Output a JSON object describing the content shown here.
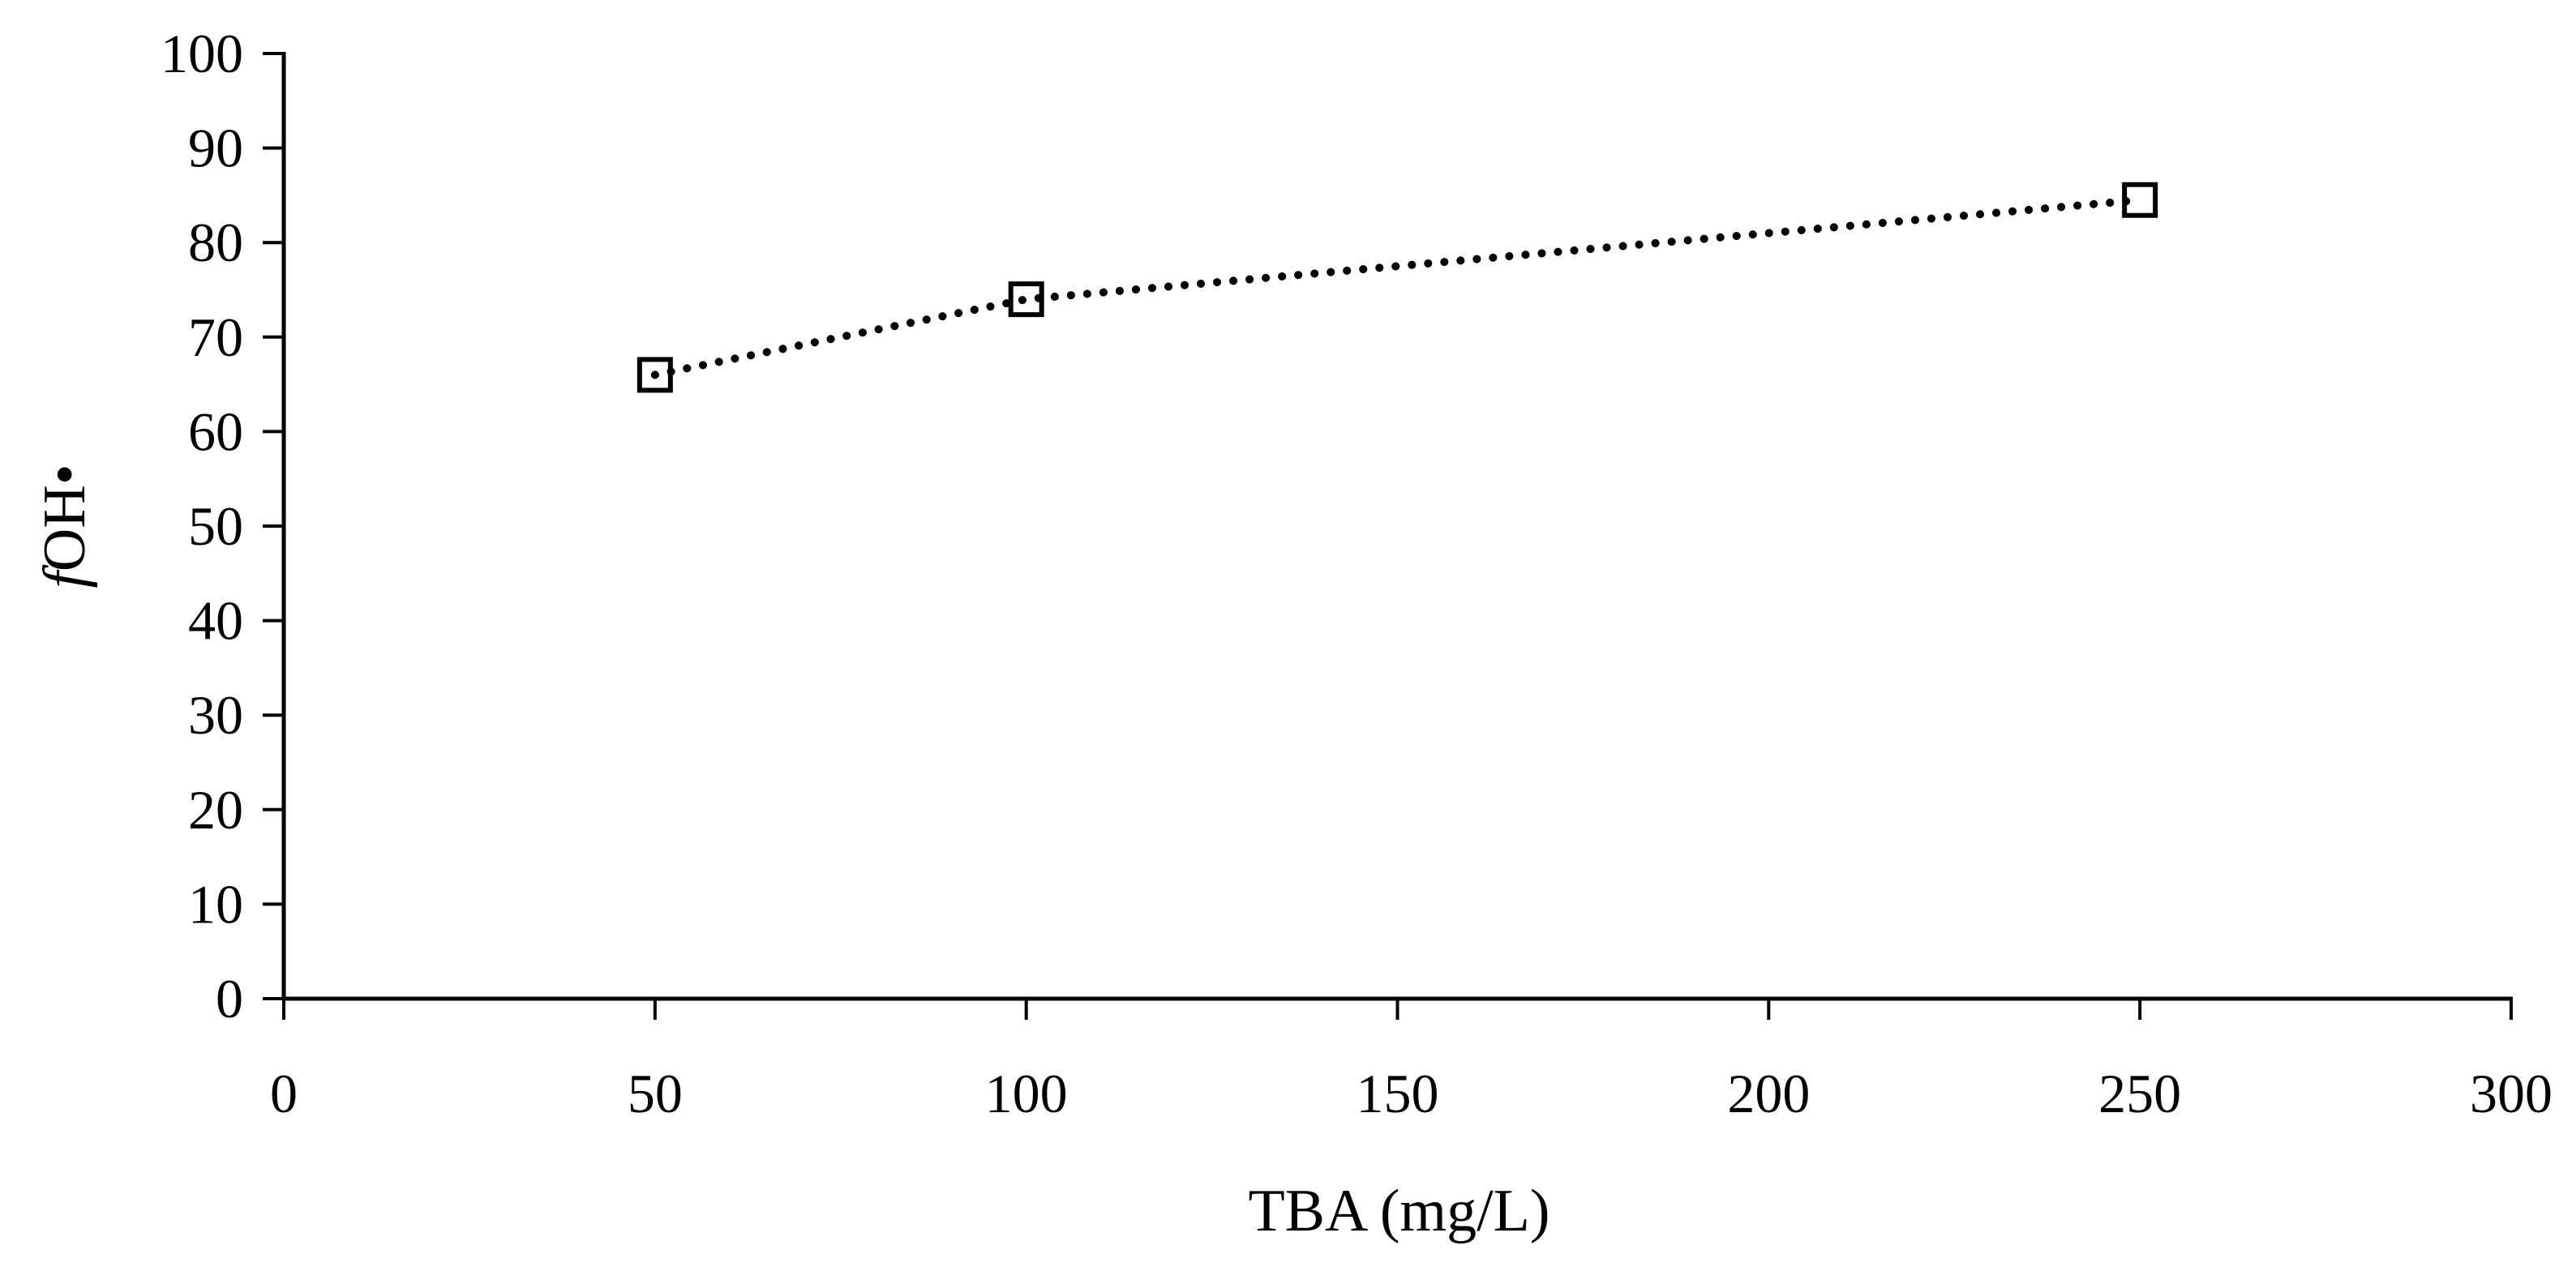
{
  "chart_data": {
    "type": "scatter",
    "title": "",
    "xlabel": "TBA (mg/L)",
    "ylabel_italic": "f",
    "ylabel_rest": "OH•",
    "xlim": [
      0,
      300
    ],
    "ylim": [
      0,
      100
    ],
    "x_ticks": [
      0,
      50,
      100,
      150,
      200,
      250,
      300
    ],
    "y_ticks": [
      0,
      10,
      20,
      30,
      40,
      50,
      60,
      70,
      80,
      90,
      100
    ],
    "x_tick_labels": [
      "0",
      "50",
      "100",
      "150",
      "200",
      "250",
      "300"
    ],
    "y_tick_labels": [
      "0",
      "10",
      "20",
      "30",
      "40",
      "50",
      "60",
      "70",
      "80",
      "90",
      "100"
    ],
    "grid": false,
    "legend": "none",
    "series": [
      {
        "name": "fOH•",
        "marker": "open-square",
        "line": "dotted",
        "x": [
          50,
          100,
          250
        ],
        "y": [
          66,
          74,
          84.5
        ]
      }
    ]
  },
  "colors": {
    "axis": "#000000",
    "series": "#000000",
    "background": "#ffffff"
  }
}
